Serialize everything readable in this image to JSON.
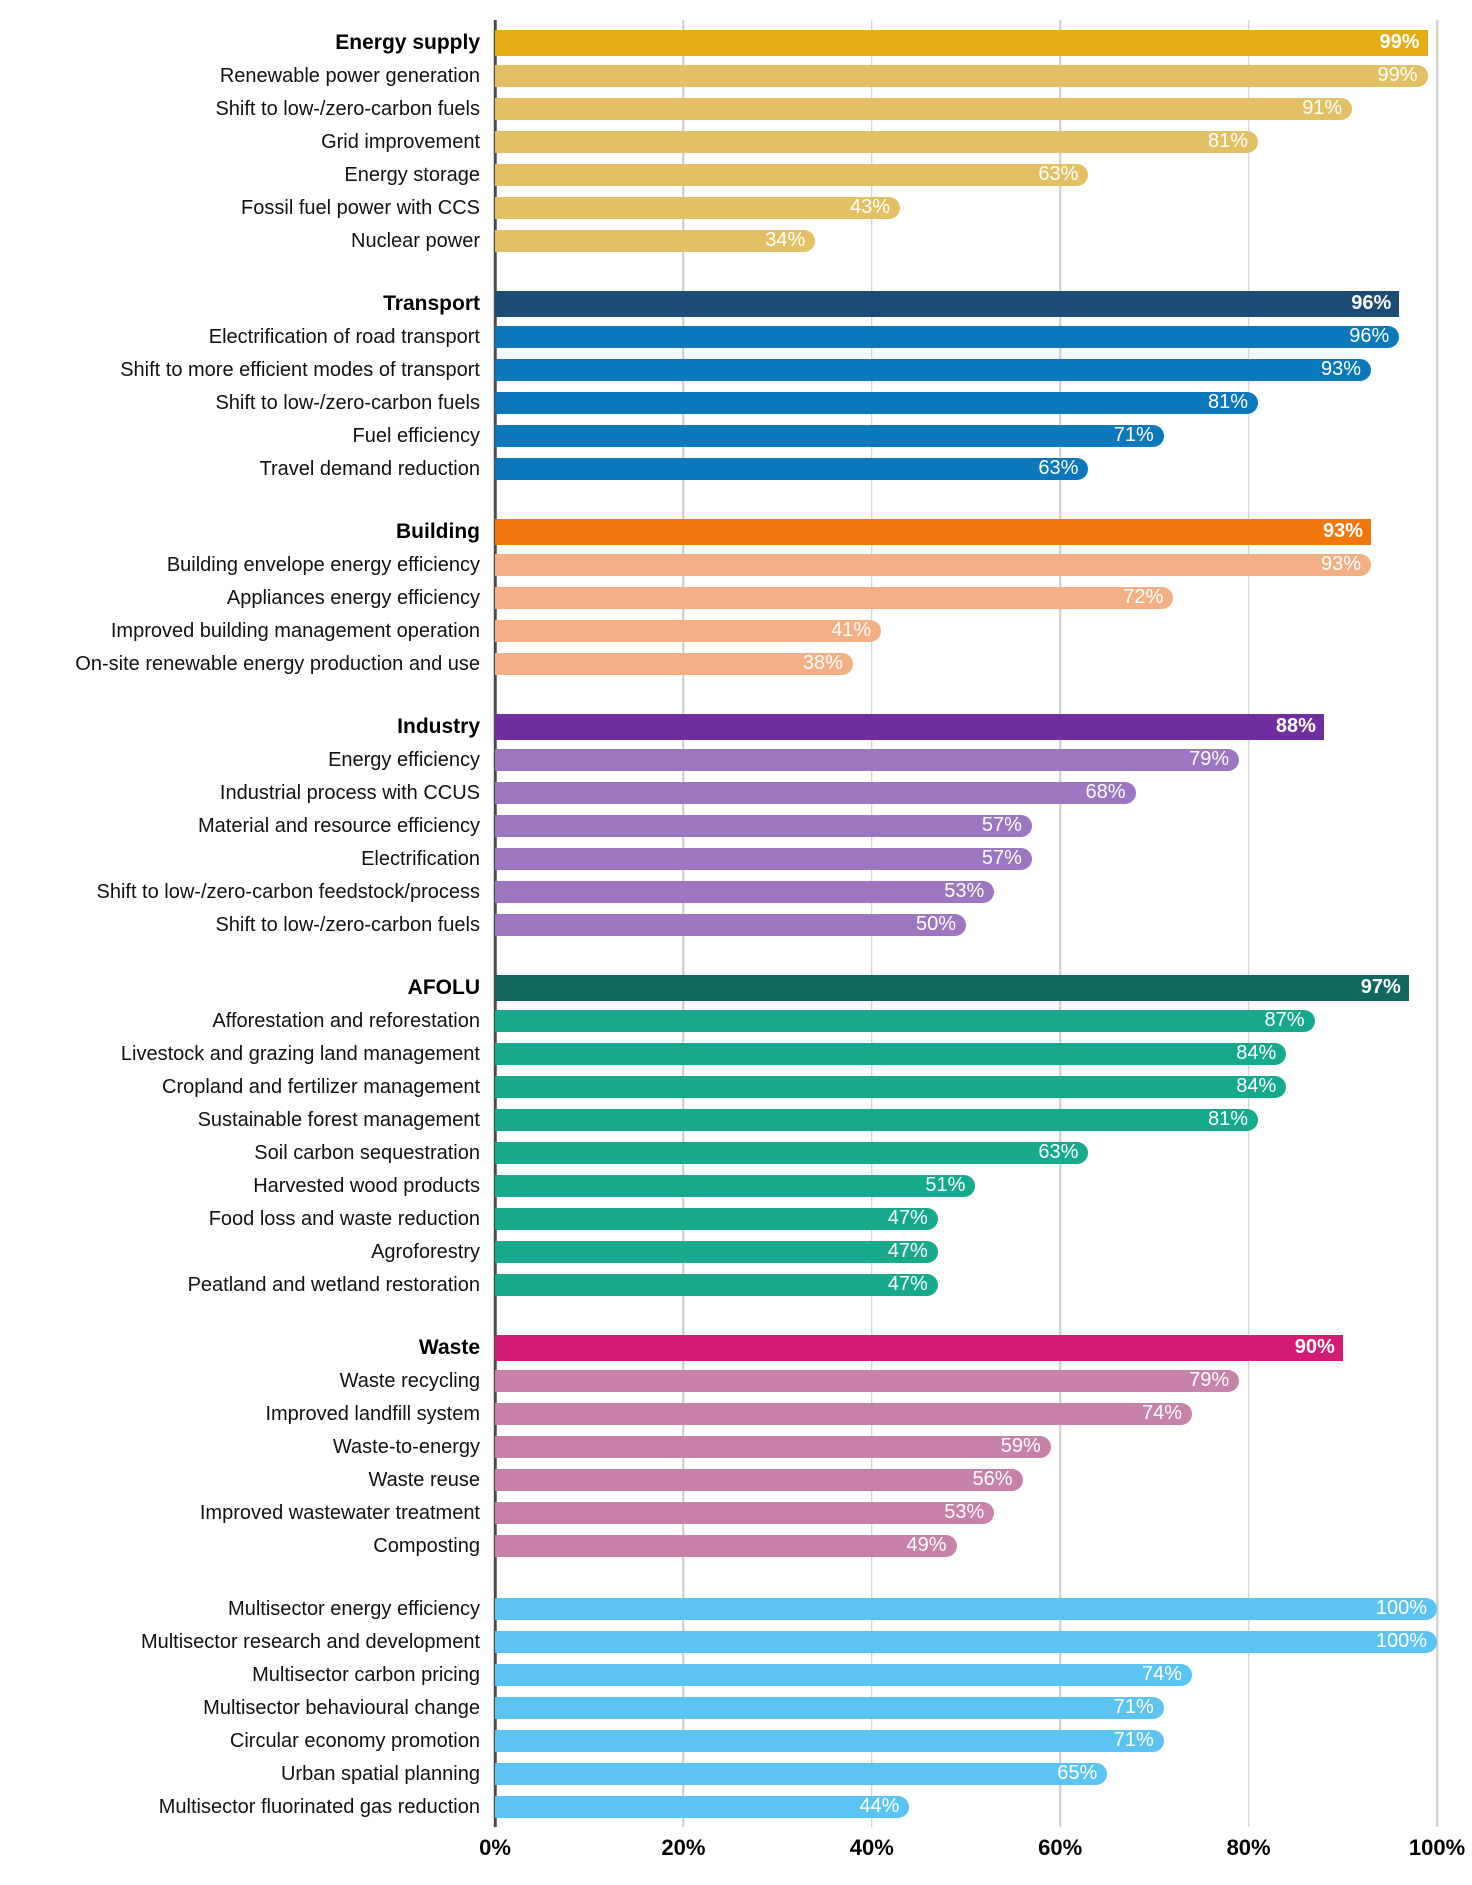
{
  "chart_data": {
    "type": "bar",
    "orientation": "horizontal",
    "title": "",
    "xlabel": "",
    "ylabel": "",
    "unit": "%",
    "xlim": [
      0,
      100
    ],
    "grid": true,
    "x_axis_ticks": [
      "0%",
      "20%",
      "40%",
      "60%",
      "80%",
      "100%"
    ],
    "sections": [
      {
        "name": "Energy supply",
        "header": {
          "label": "Energy supply",
          "value": 99
        },
        "header_color": "#E4AC15",
        "item_color": "#E2C063",
        "items": [
          {
            "label": "Renewable power generation",
            "value": 99
          },
          {
            "label": "Shift to low-/zero-carbon fuels",
            "value": 91
          },
          {
            "label": "Grid improvement",
            "value": 81
          },
          {
            "label": "Energy storage",
            "value": 63
          },
          {
            "label": "Fossil fuel power with CCS",
            "value": 43
          },
          {
            "label": "Nuclear power",
            "value": 34
          }
        ]
      },
      {
        "name": "Transport",
        "header": {
          "label": "Transport",
          "value": 96
        },
        "header_color": "#1C4B76",
        "item_color": "#0B78BC",
        "items": [
          {
            "label": "Electrification of road transport",
            "value": 96
          },
          {
            "label": "Shift to more efficient modes of transport",
            "value": 93
          },
          {
            "label": "Shift to low-/zero-carbon fuels",
            "value": 81
          },
          {
            "label": "Fuel efficiency",
            "value": 71
          },
          {
            "label": "Travel demand reduction",
            "value": 63
          }
        ]
      },
      {
        "name": "Building",
        "header": {
          "label": "Building",
          "value": 93
        },
        "header_color": "#F1760D",
        "item_color": "#F4AF85",
        "items": [
          {
            "label": "Building envelope energy efficiency",
            "value": 93
          },
          {
            "label": "Appliances energy efficiency",
            "value": 72
          },
          {
            "label": "Improved building management operation",
            "value": 41
          },
          {
            "label": "On-site renewable energy production and use",
            "value": 38
          }
        ]
      },
      {
        "name": "Industry",
        "header": {
          "label": "Industry",
          "value": 88
        },
        "header_color": "#702F9F",
        "item_color": "#9C76C0",
        "items": [
          {
            "label": "Energy efficiency",
            "value": 79
          },
          {
            "label": "Industrial process with CCUS",
            "value": 68
          },
          {
            "label": "Material and resource efficiency",
            "value": 57
          },
          {
            "label": "Electrification",
            "value": 57
          },
          {
            "label": "Shift to low-/zero-carbon feedstock/process",
            "value": 53
          },
          {
            "label": "Shift to low-/zero-carbon fuels",
            "value": 50
          }
        ]
      },
      {
        "name": "AFOLU",
        "header": {
          "label": "AFOLU",
          "value": 97
        },
        "header_color": "#12685F",
        "item_color": "#16A98C",
        "items": [
          {
            "label": "Afforestation and reforestation",
            "value": 87
          },
          {
            "label": "Livestock and grazing land management",
            "value": 84
          },
          {
            "label": "Cropland and fertilizer management",
            "value": 84
          },
          {
            "label": "Sustainable forest management",
            "value": 81
          },
          {
            "label": "Soil carbon sequestration",
            "value": 63
          },
          {
            "label": "Harvested wood products",
            "value": 51
          },
          {
            "label": "Food loss and waste reduction",
            "value": 47
          },
          {
            "label": "Agroforestry",
            "value": 47
          },
          {
            "label": "Peatland and wetland restoration",
            "value": 47
          }
        ]
      },
      {
        "name": "Waste",
        "header": {
          "label": "Waste",
          "value": 90
        },
        "header_color": "#D61C72",
        "item_color": "#C881A8",
        "items": [
          {
            "label": "Waste recycling",
            "value": 79
          },
          {
            "label": "Improved landfill system",
            "value": 74
          },
          {
            "label": "Waste-to-energy",
            "value": 59
          },
          {
            "label": "Waste reuse",
            "value": 56
          },
          {
            "label": "Improved wastewater treatment",
            "value": 53
          },
          {
            "label": "Composting",
            "value": 49
          }
        ]
      },
      {
        "name": "Multisector",
        "header": null,
        "header_color": null,
        "item_color": "#5BC4F2",
        "items": [
          {
            "label": "Multisector energy efficiency",
            "value": 100
          },
          {
            "label": "Multisector research and development",
            "value": 100
          },
          {
            "label": "Multisector carbon pricing",
            "value": 74
          },
          {
            "label": "Multisector behavioural change",
            "value": 71
          },
          {
            "label": "Circular economy promotion",
            "value": 71
          },
          {
            "label": "Urban spatial planning",
            "value": 65
          },
          {
            "label": "Multisector fluorinated gas reduction",
            "value": 44
          }
        ]
      }
    ],
    "colors": {
      "grid_line": "#cccccc",
      "axis_line": "#4a4a4a",
      "value_label_text": "#ffffff",
      "category_label_text": "#111111"
    }
  }
}
